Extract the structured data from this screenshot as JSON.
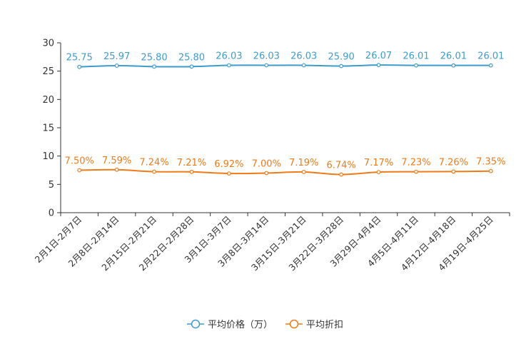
{
  "chart_data": {
    "type": "line",
    "categories": [
      "2月1日-2月7日",
      "2月8日-2月14日",
      "2月15日-2月21日",
      "2月22日-2月28日",
      "3月1日-3月7日",
      "3月8日-3月14日",
      "3月15日-3月21日",
      "3月22日-3月28日",
      "3月29日-4月4日",
      "4月5日-4月11日",
      "4月12日-4月18日",
      "4月19日-4月25日"
    ],
    "ylim": [
      0,
      30
    ],
    "yticks": [
      0,
      5,
      10,
      15,
      20,
      25,
      30
    ],
    "grid": false,
    "legend_position": "bottom-center",
    "series": [
      {
        "name": "平均价格（万）",
        "color": "#3d9ccf",
        "values": [
          25.75,
          25.97,
          25.8,
          25.8,
          26.03,
          26.03,
          26.03,
          25.9,
          26.07,
          26.01,
          26.01,
          26.01
        ],
        "labels": [
          "25.75",
          "25.97",
          "25.80",
          "25.80",
          "26.03",
          "26.03",
          "26.03",
          "25.90",
          "26.07",
          "26.01",
          "26.01",
          "26.01"
        ]
      },
      {
        "name": "平均折扣",
        "color": "#f07a16",
        "values": [
          7.5,
          7.59,
          7.24,
          7.21,
          6.92,
          7.0,
          7.19,
          6.74,
          7.17,
          7.23,
          7.26,
          7.35
        ],
        "labels": [
          "7.50%",
          "7.59%",
          "7.24%",
          "7.21%",
          "6.92%",
          "7.00%",
          "7.19%",
          "6.74%",
          "7.17%",
          "7.23%",
          "7.26%",
          "7.35%"
        ]
      }
    ]
  }
}
